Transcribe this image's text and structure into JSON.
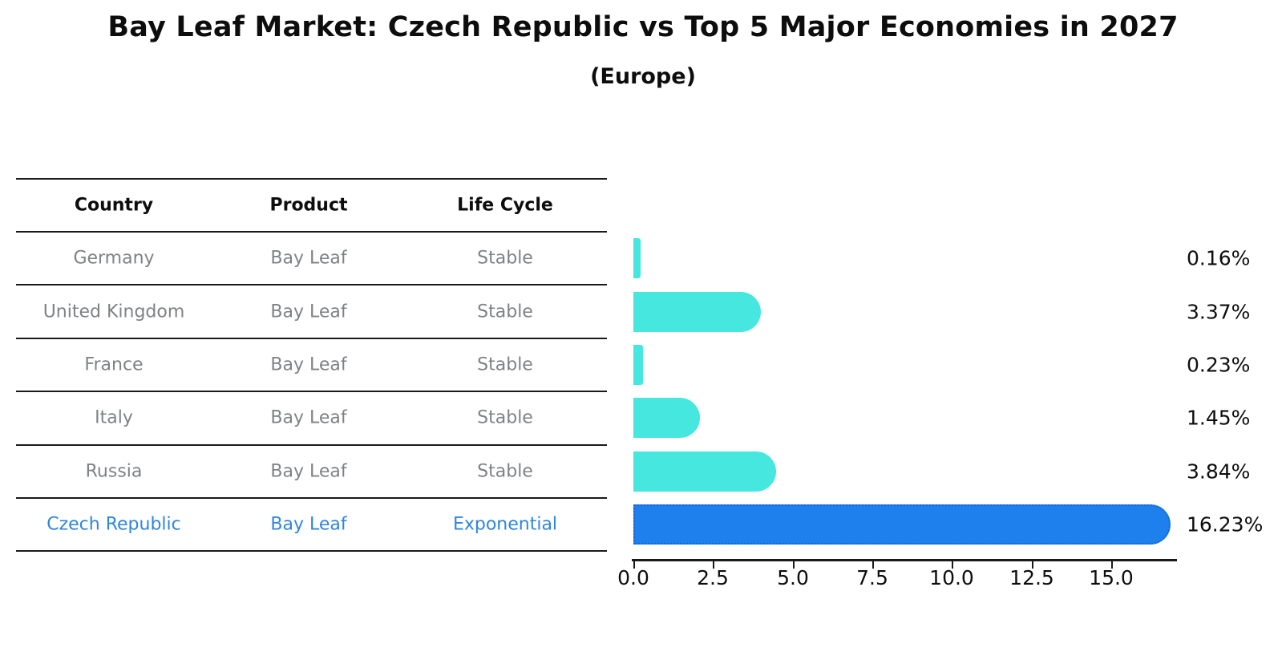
{
  "title": "Bay Leaf Market: Czech Republic vs Top 5 Major Economies in 2027",
  "subtitle": "(Europe)",
  "table": {
    "headers": [
      "Country",
      "Product",
      "Life Cycle"
    ],
    "rows": [
      {
        "country": "Germany",
        "product": "Bay Leaf",
        "life_cycle": "Stable",
        "highlighted": false
      },
      {
        "country": "United Kingdom",
        "product": "Bay Leaf",
        "life_cycle": "Stable",
        "highlighted": false
      },
      {
        "country": "France",
        "product": "Bay Leaf",
        "life_cycle": "Stable",
        "highlighted": false
      },
      {
        "country": "Italy",
        "product": "Bay Leaf",
        "life_cycle": "Stable",
        "highlighted": false
      },
      {
        "country": "Russia",
        "product": "Bay Leaf",
        "life_cycle": "Stable",
        "highlighted": false
      },
      {
        "country": "Czech Republic",
        "product": "Bay Leaf",
        "life_cycle": "Exponential",
        "highlighted": true
      }
    ]
  },
  "chart_data": {
    "type": "bar",
    "orientation": "horizontal",
    "title": "Bay Leaf Market: Czech Republic vs Top 5 Major Economies in 2027",
    "subtitle": "(Europe)",
    "categories": [
      "Germany",
      "United Kingdom",
      "France",
      "Italy",
      "Russia",
      "Czech Republic"
    ],
    "values": [
      0.16,
      3.37,
      0.23,
      1.45,
      3.84,
      16.23
    ],
    "value_labels": [
      "0.16%",
      "3.37%",
      "0.23%",
      "1.45%",
      "3.84%",
      "16.23%"
    ],
    "xlabel": "",
    "ylabel": "",
    "xlim": [
      0,
      17
    ],
    "x_ticks": [
      0.0,
      2.5,
      5.0,
      7.5,
      10.0,
      12.5,
      15.0
    ],
    "x_tick_labels": [
      "0.0",
      "2.5",
      "5.0",
      "7.5",
      "10.0",
      "12.5",
      "15.0"
    ],
    "grid": false,
    "legend": false,
    "bar_color": "#46e7df",
    "highlight_color": "#1e80ec",
    "highlight_border_color": "#1565d2",
    "highlight_index": 5,
    "highlight_text_color": "#2e86de"
  }
}
